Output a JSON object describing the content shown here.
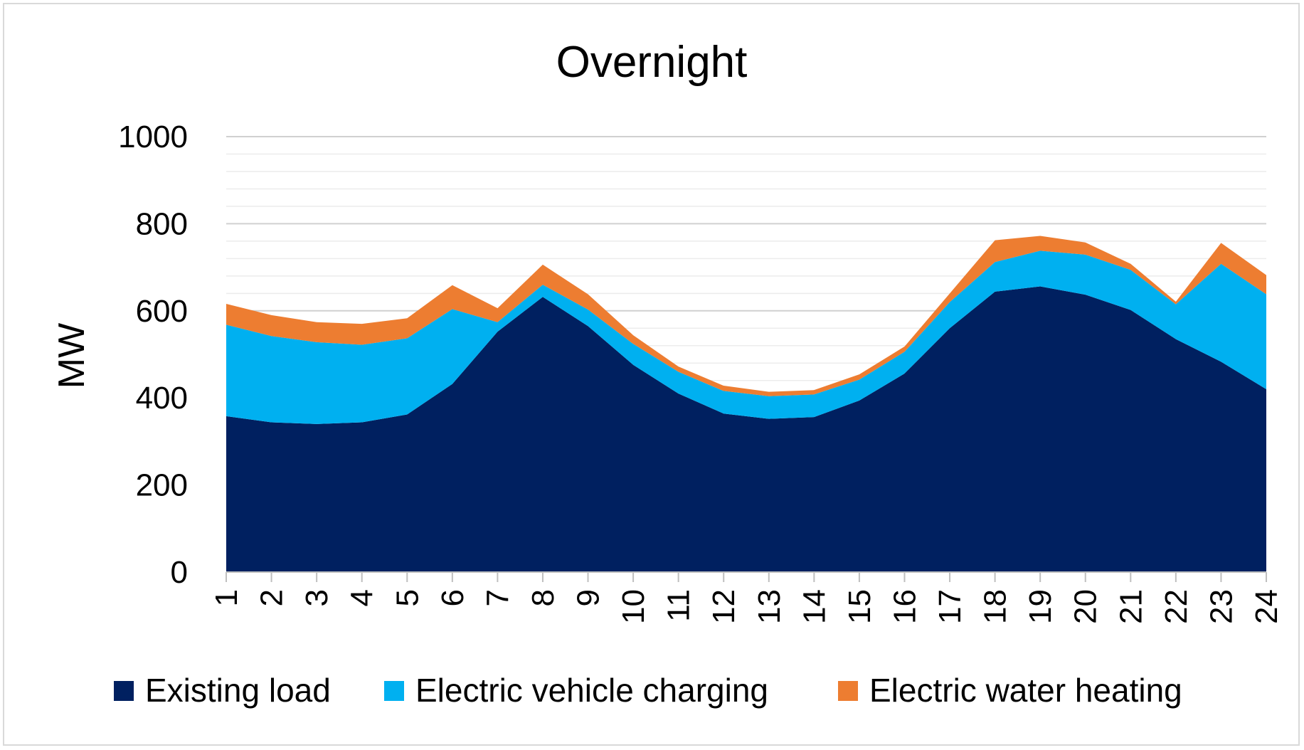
{
  "chart_data": {
    "type": "area",
    "stacked": true,
    "title": "Overnight",
    "xlabel": "",
    "ylabel": "MW",
    "ylim": [
      0,
      1000
    ],
    "yticks": [
      0,
      200,
      400,
      600,
      800,
      1000
    ],
    "minor_grid_step": 40,
    "grid": true,
    "legend_position": "bottom",
    "x": [
      "1",
      "2",
      "3",
      "4",
      "5",
      "6",
      "7",
      "8",
      "9",
      "10",
      "11",
      "12",
      "13",
      "14",
      "15",
      "16",
      "17",
      "18",
      "19",
      "20",
      "21",
      "22",
      "23",
      "24"
    ],
    "series": [
      {
        "name": "Existing load",
        "color": "#002060",
        "values": [
          358,
          344,
          340,
          344,
          362,
          432,
          552,
          632,
          565,
          476,
          410,
          364,
          352,
          356,
          394,
          456,
          560,
          644,
          656,
          637,
          602,
          535,
          483,
          420
        ]
      },
      {
        "name": "Electric vehicle charging",
        "color": "#00B0F0",
        "values": [
          210,
          198,
          188,
          178,
          175,
          172,
          22,
          28,
          38,
          48,
          50,
          52,
          52,
          52,
          48,
          50,
          60,
          68,
          82,
          92,
          92,
          80,
          225,
          218
        ]
      },
      {
        "name": "Electric water heating",
        "color": "#ED7D31",
        "values": [
          48,
          48,
          46,
          48,
          46,
          55,
          32,
          46,
          35,
          20,
          12,
          12,
          10,
          10,
          12,
          12,
          20,
          50,
          34,
          28,
          14,
          6,
          48,
          44
        ]
      }
    ]
  }
}
